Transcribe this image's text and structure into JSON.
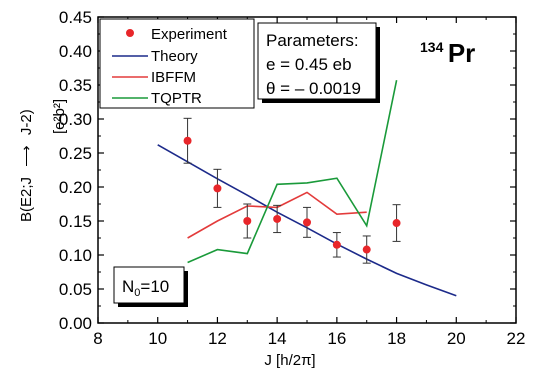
{
  "chart_data": {
    "type": "scatter",
    "xlabel": "J [h/2π]",
    "ylabel_parts": {
      "before": "B(E2;J",
      "arrow": "⟶",
      "after": "J-2)",
      "unit": "[e²b²]"
    },
    "xlim": [
      8,
      22
    ],
    "ylim": [
      0.0,
      0.45
    ],
    "x_ticks": [
      8,
      10,
      12,
      14,
      16,
      18,
      20,
      22
    ],
    "y_ticks": [
      0.0,
      0.05,
      0.1,
      0.15,
      0.2,
      0.25,
      0.3,
      0.35,
      0.4,
      0.45
    ],
    "y_tick_labels": [
      "0.00",
      "0.05",
      "0.10",
      "0.15",
      "0.20",
      "0.25",
      "0.30",
      "0.35",
      "0.40",
      "0.45"
    ],
    "x_tick_labels": [
      "8",
      "10",
      "12",
      "14",
      "16",
      "18",
      "20",
      "22"
    ],
    "grid": false,
    "legend_position": "top-left",
    "series": [
      {
        "name": "Experiment",
        "kind": "points",
        "color": "#e8262a",
        "x": [
          11,
          12,
          13,
          14,
          15,
          16,
          17,
          18
        ],
        "y": [
          0.268,
          0.198,
          0.15,
          0.153,
          0.148,
          0.115,
          0.108,
          0.147
        ],
        "err": [
          0.033,
          0.028,
          0.025,
          0.02,
          0.022,
          0.018,
          0.02,
          0.027
        ]
      },
      {
        "name": "Theory",
        "kind": "line",
        "color": "#1c2a8a",
        "x": [
          10,
          11,
          12,
          13,
          14,
          15,
          16,
          17,
          18,
          19,
          20
        ],
        "y": [
          0.262,
          0.237,
          0.212,
          0.188,
          0.163,
          0.14,
          0.116,
          0.094,
          0.073,
          0.056,
          0.04
        ]
      },
      {
        "name": "IBFFM",
        "kind": "line",
        "color": "#e33b3b",
        "x": [
          11,
          12,
          13,
          14,
          15,
          16,
          17
        ],
        "y": [
          0.125,
          0.15,
          0.172,
          0.17,
          0.192,
          0.16,
          0.163
        ]
      },
      {
        "name": "TQPTR",
        "kind": "line",
        "color": "#1a9a3a",
        "x": [
          11,
          12,
          13,
          14,
          15,
          16,
          17,
          18
        ],
        "y": [
          0.089,
          0.108,
          0.102,
          0.204,
          0.206,
          0.213,
          0.143,
          0.357
        ]
      }
    ],
    "annotations": {
      "parameters_title": "Parameters:",
      "parameters_e": "e = 0.45 eb",
      "parameters_theta": "θ = – 0.0019",
      "isotope_mass": "134",
      "isotope_symbol": "Pr",
      "n0_main": "N",
      "n0_sub": "0",
      "n0_value": "=10"
    }
  }
}
